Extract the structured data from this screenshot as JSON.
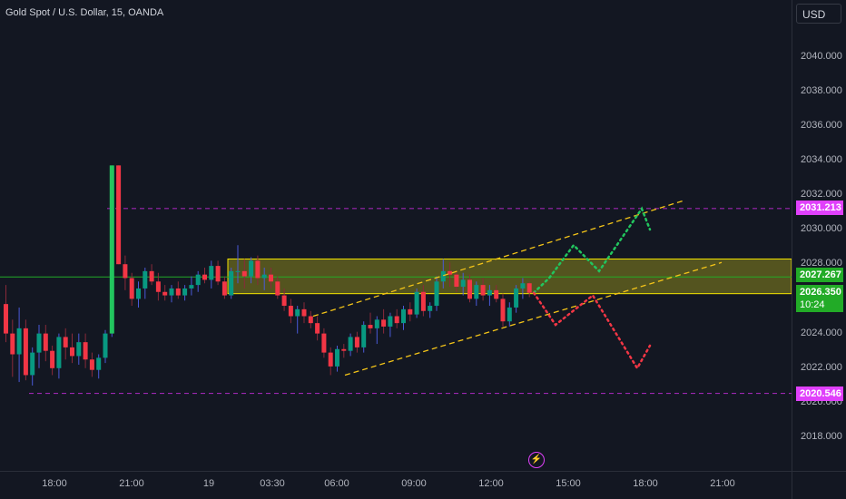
{
  "header": {
    "title": "Gold Spot / U.S. Dollar, 15, OANDA"
  },
  "currency_button": {
    "label": "USD"
  },
  "event_icon": {
    "name": "lightning-bolt-icon",
    "glyph": "⚡"
  },
  "colors": {
    "background": "#131722",
    "bull": "#089981",
    "bull_bright": "#22c55e",
    "bear": "#f23645",
    "zone_fill": "#6b6a1f",
    "zone_border": "#f5e400",
    "channel": "#f5c518",
    "level_line": "#9c27b0",
    "price_line": "#22ab27",
    "projection_up": "#22c55e",
    "projection_down": "#f23645"
  },
  "axis": {
    "y_ticks": [
      "2040.000",
      "2038.000",
      "2036.000",
      "2034.000",
      "2032.000",
      "2030.000",
      "2028.000",
      "2024.000",
      "2022.000",
      "2020.000",
      "2018.000"
    ],
    "x_ticks": [
      "18:00",
      "21:00",
      "19",
      "03:30",
      "06:00",
      "09:00",
      "12:00",
      "15:00",
      "18:00",
      "21:00"
    ]
  },
  "price_tags": {
    "resistance": {
      "value": "2031.213",
      "color": "#e040fb"
    },
    "zone_top": {
      "value": "2027.267",
      "color": "#22ab27"
    },
    "current": {
      "value": "2026.350",
      "color": "#22ab27",
      "countdown": "10:24"
    },
    "support": {
      "value": "2020.546",
      "color": "#e040fb"
    }
  },
  "chart_data": {
    "type": "candlestick",
    "title": "Gold Spot / U.S. Dollar, 15, OANDA",
    "ylim": [
      2017.2,
      2042.9
    ],
    "y_ticks": [
      2040,
      2038,
      2036,
      2034,
      2032,
      2030,
      2028,
      2024,
      2022,
      2020,
      2018
    ],
    "x_tick_labels": [
      "18:00",
      "21:00",
      "19",
      "03:30",
      "06:00",
      "09:00",
      "12:00",
      "15:00",
      "18:00",
      "21:00"
    ],
    "levels": [
      {
        "name": "resistance",
        "value": 2031.213,
        "style": "dashed"
      },
      {
        "name": "support",
        "value": 2020.546,
        "style": "dashed"
      },
      {
        "name": "price",
        "value": 2027.267,
        "style": "solid"
      }
    ],
    "zone": {
      "low": 2026.3,
      "high": 2028.3
    },
    "candles": [
      [
        2025.7,
        2026.8,
        2023.5,
        2024.0
      ],
      [
        2024.0,
        2024.8,
        2021.5,
        2022.8
      ],
      [
        2022.8,
        2025.5,
        2021.2,
        2024.3
      ],
      [
        2024.3,
        2024.8,
        2021.3,
        2021.6
      ],
      [
        2021.6,
        2023.2,
        2021.0,
        2022.9
      ],
      [
        2022.9,
        2024.5,
        2022.0,
        2024.0
      ],
      [
        2024.0,
        2024.5,
        2022.4,
        2023.0
      ],
      [
        2023.0,
        2023.3,
        2021.6,
        2022.0
      ],
      [
        2022.0,
        2024.0,
        2021.4,
        2023.8
      ],
      [
        2023.8,
        2024.3,
        2022.5,
        2023.2
      ],
      [
        2023.2,
        2024.0,
        2022.3,
        2022.7
      ],
      [
        2022.7,
        2024.0,
        2022.2,
        2023.5
      ],
      [
        2023.5,
        2024.0,
        2022.0,
        2022.5
      ],
      [
        2022.5,
        2022.9,
        2021.5,
        2021.9
      ],
      [
        2021.9,
        2022.8,
        2021.4,
        2022.6
      ],
      [
        2022.6,
        2024.2,
        2022.3,
        2024.0
      ],
      [
        2024.0,
        2033.7,
        2023.8,
        2033.7
      ],
      [
        2033.7,
        2033.7,
        2028.0,
        2028.0
      ],
      [
        2028.0,
        2028.5,
        2026.5,
        2027.2
      ],
      [
        2027.2,
        2027.5,
        2025.6,
        2026.0
      ],
      [
        2026.0,
        2027.0,
        2025.5,
        2026.6
      ],
      [
        2026.6,
        2027.8,
        2026.0,
        2027.6
      ],
      [
        2027.6,
        2028.0,
        2026.8,
        2027.0
      ],
      [
        2027.0,
        2027.5,
        2025.9,
        2026.4
      ],
      [
        2026.4,
        2026.8,
        2025.9,
        2026.2
      ],
      [
        2026.2,
        2026.8,
        2025.8,
        2026.6
      ],
      [
        2026.6,
        2027.0,
        2026.0,
        2026.2
      ],
      [
        2026.2,
        2026.8,
        2025.9,
        2026.6
      ],
      [
        2026.6,
        2027.3,
        2026.2,
        2026.8
      ],
      [
        2026.8,
        2027.6,
        2026.4,
        2027.4
      ],
      [
        2027.4,
        2027.8,
        2026.9,
        2027.1
      ],
      [
        2027.1,
        2028.2,
        2026.6,
        2027.9
      ],
      [
        2027.9,
        2028.2,
        2026.8,
        2027.0
      ],
      [
        2027.0,
        2027.3,
        2026.0,
        2026.2
      ],
      [
        2026.2,
        2027.8,
        2026.0,
        2027.6
      ],
      [
        2027.6,
        2029.1,
        2026.9,
        2027.6
      ],
      [
        2027.6,
        2028.3,
        2026.6,
        2027.3
      ],
      [
        2027.3,
        2028.4,
        2026.9,
        2028.2
      ],
      [
        2028.2,
        2028.5,
        2026.8,
        2027.2
      ],
      [
        2027.2,
        2027.8,
        2026.5,
        2027.4
      ],
      [
        2027.4,
        2027.8,
        2026.6,
        2027.0
      ],
      [
        2027.0,
        2027.3,
        2026.0,
        2026.2
      ],
      [
        2026.2,
        2026.6,
        2025.3,
        2025.6
      ],
      [
        2025.6,
        2026.0,
        2024.6,
        2025.0
      ],
      [
        2025.0,
        2025.6,
        2024.0,
        2025.4
      ],
      [
        2025.4,
        2025.8,
        2024.6,
        2025.0
      ],
      [
        2025.0,
        2025.3,
        2024.3,
        2024.6
      ],
      [
        2024.6,
        2025.0,
        2023.6,
        2024.0
      ],
      [
        2024.0,
        2024.3,
        2022.6,
        2022.9
      ],
      [
        2022.9,
        2023.2,
        2021.6,
        2022.1
      ],
      [
        2022.1,
        2023.3,
        2021.8,
        2023.1
      ],
      [
        2023.1,
        2023.4,
        2022.6,
        2023.0
      ],
      [
        2023.0,
        2024.0,
        2022.7,
        2023.8
      ],
      [
        2023.8,
        2024.1,
        2022.9,
        2023.2
      ],
      [
        2023.2,
        2024.7,
        2022.9,
        2024.5
      ],
      [
        2024.5,
        2025.2,
        2024.0,
        2024.3
      ],
      [
        2024.3,
        2025.0,
        2023.4,
        2024.8
      ],
      [
        2024.8,
        2025.4,
        2024.0,
        2024.4
      ],
      [
        2024.4,
        2025.2,
        2023.8,
        2025.0
      ],
      [
        2025.0,
        2025.4,
        2024.3,
        2024.6
      ],
      [
        2024.6,
        2025.6,
        2024.2,
        2025.4
      ],
      [
        2025.4,
        2025.8,
        2024.7,
        2025.1
      ],
      [
        2025.1,
        2026.6,
        2024.9,
        2026.4
      ],
      [
        2026.4,
        2026.8,
        2025.0,
        2025.3
      ],
      [
        2025.3,
        2025.8,
        2024.9,
        2025.6
      ],
      [
        2025.6,
        2027.3,
        2025.3,
        2027.0
      ],
      [
        2027.0,
        2028.3,
        2026.6,
        2027.6
      ],
      [
        2027.6,
        2028.1,
        2026.7,
        2027.4
      ],
      [
        2027.4,
        2027.6,
        2026.4,
        2026.7
      ],
      [
        2026.7,
        2027.5,
        2026.2,
        2027.1
      ],
      [
        2027.1,
        2027.4,
        2025.8,
        2026.0
      ],
      [
        2026.0,
        2027.0,
        2025.6,
        2026.8
      ],
      [
        2026.8,
        2027.2,
        2025.9,
        2026.2
      ],
      [
        2026.2,
        2026.8,
        2025.6,
        2026.5
      ],
      [
        2026.5,
        2026.8,
        2025.8,
        2026.0
      ],
      [
        2026.0,
        2026.3,
        2024.4,
        2024.7
      ],
      [
        2024.7,
        2025.8,
        2024.4,
        2025.5
      ],
      [
        2025.5,
        2026.8,
        2025.2,
        2026.6
      ],
      [
        2026.6,
        2027.2,
        2026.0,
        2026.9
      ],
      [
        2026.9,
        2027.0,
        2026.1,
        2026.35
      ]
    ],
    "channel": {
      "upper": [
        [
          2025.0,
          2031.7
        ]
      ],
      "lower": [
        [
          2021.6,
          2028.1
        ]
      ]
    },
    "projections": {
      "bullish_path": [
        2026.35,
        2027.2,
        2029.1,
        2027.6,
        2031.2,
        2030.0
      ],
      "bearish_path": [
        2026.35,
        2024.5,
        2026.2,
        2022.0,
        2023.3
      ]
    }
  }
}
